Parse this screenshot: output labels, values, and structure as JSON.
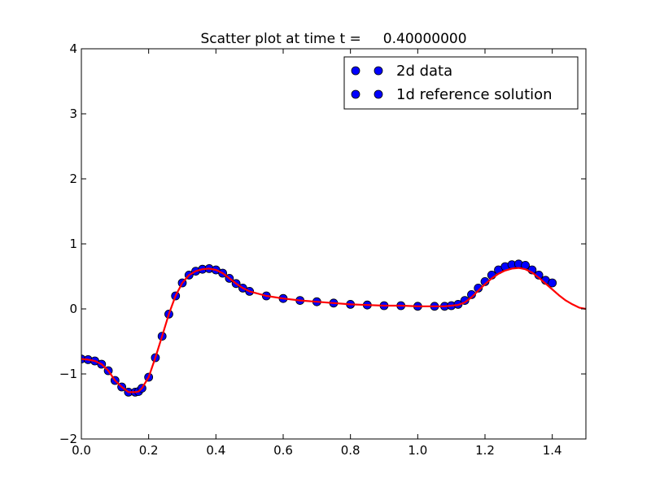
{
  "chart_data": {
    "type": "scatter",
    "title": "Scatter plot at time t =     0.40000000",
    "xlabel": "",
    "ylabel": "",
    "xlim": [
      0.0,
      1.5
    ],
    "ylim": [
      -2,
      4
    ],
    "xticks": [
      "0.0",
      "0.2",
      "0.4",
      "0.6",
      "0.8",
      "1.0",
      "1.2",
      "1.4"
    ],
    "xtick_values": [
      0.0,
      0.2,
      0.4,
      0.6,
      0.8,
      1.0,
      1.2,
      1.4
    ],
    "yticks": [
      "−2",
      "−1",
      "0",
      "1",
      "2",
      "3",
      "4"
    ],
    "ytick_values": [
      -2,
      -1,
      0,
      1,
      2,
      3,
      4
    ],
    "grid": false,
    "legend_position": "top-right",
    "legend": [
      "2d data",
      "1d reference solution"
    ],
    "series": [
      {
        "name": "2d data",
        "kind": "scatter",
        "color": "#0000ff",
        "x": [
          0.0,
          0.02,
          0.04,
          0.06,
          0.08,
          0.1,
          0.12,
          0.14,
          0.16,
          0.17,
          0.18,
          0.2,
          0.22,
          0.24,
          0.26,
          0.28,
          0.3,
          0.32,
          0.34,
          0.36,
          0.38,
          0.4,
          0.42,
          0.44,
          0.46,
          0.48,
          0.5,
          0.55,
          0.6,
          0.65,
          0.7,
          0.75,
          0.8,
          0.85,
          0.9,
          0.95,
          1.0,
          1.05,
          1.08,
          1.1,
          1.12,
          1.14,
          1.16,
          1.18,
          1.2,
          1.22,
          1.24,
          1.26,
          1.28,
          1.3,
          1.32,
          1.34,
          1.36,
          1.38,
          1.4
        ],
        "y": [
          -0.77,
          -0.78,
          -0.8,
          -0.85,
          -0.95,
          -1.1,
          -1.2,
          -1.28,
          -1.28,
          -1.27,
          -1.22,
          -1.05,
          -0.75,
          -0.42,
          -0.08,
          0.2,
          0.4,
          0.52,
          0.58,
          0.61,
          0.62,
          0.6,
          0.55,
          0.47,
          0.39,
          0.32,
          0.27,
          0.2,
          0.16,
          0.13,
          0.11,
          0.09,
          0.07,
          0.06,
          0.05,
          0.05,
          0.04,
          0.04,
          0.04,
          0.05,
          0.07,
          0.13,
          0.22,
          0.32,
          0.42,
          0.52,
          0.6,
          0.65,
          0.68,
          0.69,
          0.67,
          0.6,
          0.52,
          0.44,
          0.4
        ]
      },
      {
        "name": "1d reference solution",
        "kind": "line",
        "color": "#ff0000",
        "x": [
          0.0,
          0.02,
          0.04,
          0.06,
          0.08,
          0.1,
          0.12,
          0.14,
          0.16,
          0.17,
          0.18,
          0.2,
          0.22,
          0.24,
          0.26,
          0.28,
          0.3,
          0.32,
          0.34,
          0.36,
          0.38,
          0.4,
          0.42,
          0.44,
          0.46,
          0.48,
          0.5,
          0.55,
          0.6,
          0.65,
          0.7,
          0.75,
          0.8,
          0.85,
          0.9,
          0.95,
          1.0,
          1.05,
          1.08,
          1.1,
          1.12,
          1.14,
          1.16,
          1.18,
          1.2,
          1.22,
          1.24,
          1.26,
          1.28,
          1.3,
          1.32,
          1.34,
          1.36,
          1.38,
          1.4,
          1.42,
          1.44,
          1.46,
          1.48,
          1.5
        ],
        "y": [
          -0.77,
          -0.78,
          -0.8,
          -0.85,
          -0.95,
          -1.1,
          -1.2,
          -1.28,
          -1.28,
          -1.27,
          -1.22,
          -1.05,
          -0.75,
          -0.42,
          -0.08,
          0.2,
          0.4,
          0.52,
          0.58,
          0.61,
          0.62,
          0.6,
          0.55,
          0.47,
          0.39,
          0.32,
          0.27,
          0.2,
          0.16,
          0.13,
          0.11,
          0.09,
          0.07,
          0.06,
          0.05,
          0.05,
          0.04,
          0.04,
          0.04,
          0.05,
          0.06,
          0.1,
          0.18,
          0.28,
          0.38,
          0.47,
          0.54,
          0.59,
          0.62,
          0.63,
          0.61,
          0.56,
          0.48,
          0.39,
          0.3,
          0.21,
          0.13,
          0.07,
          0.02,
          0.0
        ]
      }
    ]
  }
}
